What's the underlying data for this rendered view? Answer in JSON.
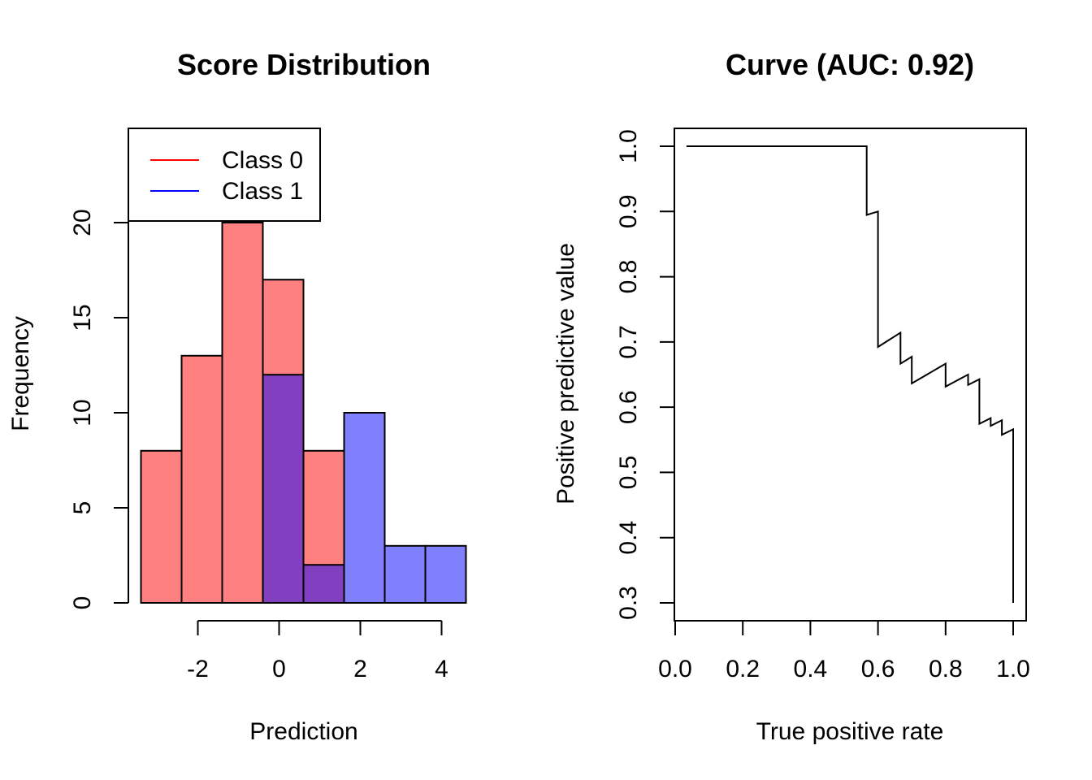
{
  "chart_data": [
    {
      "type": "bar",
      "title": "Score Distribution",
      "xlabel": "Prediction",
      "ylabel": "Frequency",
      "xticks": [
        -2,
        0,
        2,
        4
      ],
      "yticks": [
        0,
        5,
        10,
        15,
        20
      ],
      "bin_edges": [
        -3.4,
        -2.4,
        -1.4,
        -0.4,
        0.6,
        1.6,
        2.6,
        3.6,
        4.6
      ],
      "series": [
        {
          "name": "Class 0",
          "color": "#ff0000",
          "fill": "#ff8080",
          "values": [
            8,
            13,
            20,
            17,
            8,
            0,
            0,
            0
          ]
        },
        {
          "name": "Class 1",
          "color": "#0000ff",
          "fill": "#8080ff",
          "values": [
            0,
            0,
            0,
            12,
            2,
            10,
            3,
            3
          ]
        }
      ],
      "overlap_fill": "#8040c0",
      "legend": {
        "position": "top-left",
        "items": [
          "Class 0",
          "Class 1"
        ]
      },
      "grid": false
    },
    {
      "type": "line",
      "title": "Curve (AUC: 0.92)",
      "xlabel": "True positive rate",
      "ylabel": "Positive predictive value",
      "xlim": [
        0.0,
        1.0
      ],
      "ylim": [
        0.3,
        1.0
      ],
      "xticks": [
        "0.0",
        "0.2",
        "0.4",
        "0.6",
        "0.8",
        "1.0"
      ],
      "yticks": [
        "0.3",
        "0.4",
        "0.5",
        "0.6",
        "0.7",
        "0.8",
        "0.9",
        "1.0"
      ],
      "grid": false,
      "points": [
        [
          0.0333,
          1.0
        ],
        [
          0.5667,
          1.0
        ],
        [
          0.5667,
          0.8947
        ],
        [
          0.6,
          0.9
        ],
        [
          0.6,
          0.6923
        ],
        [
          0.6667,
          0.7143
        ],
        [
          0.6667,
          0.6667
        ],
        [
          0.7,
          0.6774
        ],
        [
          0.7,
          0.6364
        ],
        [
          0.8,
          0.6667
        ],
        [
          0.8,
          0.6316
        ],
        [
          0.8667,
          0.65
        ],
        [
          0.8667,
          0.6341
        ],
        [
          0.9,
          0.6429
        ],
        [
          0.9,
          0.5745
        ],
        [
          0.9333,
          0.5833
        ],
        [
          0.9333,
          0.5714
        ],
        [
          0.9667,
          0.58
        ],
        [
          0.9667,
          0.5577
        ],
        [
          1.0,
          0.566
        ],
        [
          1.0,
          0.3
        ]
      ]
    }
  ]
}
